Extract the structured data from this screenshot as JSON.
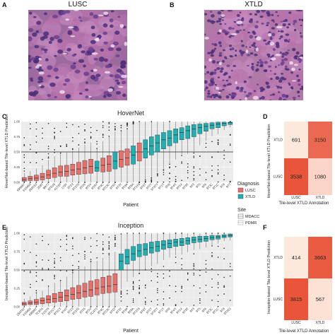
{
  "panels": {
    "A": {
      "letter": "A",
      "title": "LUSC"
    },
    "B": {
      "letter": "B",
      "title": "XTLD"
    },
    "C": {
      "letter": "C"
    },
    "D": {
      "letter": "D"
    },
    "E": {
      "letter": "E"
    },
    "F": {
      "letter": "F"
    }
  },
  "colors": {
    "lusc": "#e8706a",
    "xtld": "#1fb0b3",
    "panel_bg": "#ebebeb",
    "grid": "#ffffff",
    "histology_bg": "#a7669b",
    "heat_high": "#e8553b",
    "heat_mid": "#f2a888",
    "heat_low": "#fde8dc"
  },
  "legend": {
    "diagnosis_title": "Diagnosis",
    "diagnosis_items": [
      "LUSC",
      "XTLD"
    ],
    "site_title": "Site",
    "site_items": [
      "MDACC",
      "PDMR"
    ]
  },
  "chart_data": [
    {
      "id": "C",
      "type": "box",
      "title": "HoverNet",
      "xlabel": "Patient",
      "ylabel": "HoverNet-based Tile-level XTLD Prediction",
      "ylim": [
        0,
        1
      ],
      "yticks": [
        "0.00",
        "0.25",
        "0.50",
        "0.75",
        "1.00"
      ],
      "reference_line": 0.5,
      "categories": [
        "695887",
        "618469",
        "258153",
        "258T",
        "9R77",
        "9T5V8",
        "41T9T",
        "179T",
        "9T23",
        "9T3T0",
        "9T26",
        "9T5V",
        "9TR7",
        "9T4C",
        "9T23C",
        "9T5T",
        "9T3T",
        "9T9A",
        "9T8A",
        "9T3T8",
        "9T6T",
        "9T2T",
        "9T3TT",
        "9T1T",
        "9TR",
        "9T4X",
        "9T5X",
        "9T9T",
        "9T3",
        "9T5",
        "9T6",
        "9T3C",
        "9T1C",
        "9T8",
        "9T7"
      ],
      "diagnosis": [
        "LUSC",
        "LUSC",
        "LUSC",
        "LUSC",
        "LUSC",
        "LUSC",
        "LUSC",
        "LUSC",
        "LUSC",
        "LUSC",
        "LUSC",
        "LUSC",
        "XTLD",
        "LUSC",
        "LUSC",
        "XTLD",
        "LUSC",
        "LUSC",
        "XTLD",
        "LUSC",
        "XTLD",
        "XTLD",
        "XTLD",
        "XTLD",
        "XTLD",
        "XTLD",
        "XTLD",
        "XTLD",
        "XTLD",
        "XTLD",
        "XTLD",
        "XTLD",
        "XTLD",
        "XTLD",
        "XTLD"
      ],
      "medians": [
        0.04,
        0.06,
        0.07,
        0.09,
        0.12,
        0.15,
        0.17,
        0.18,
        0.2,
        0.22,
        0.24,
        0.26,
        0.24,
        0.28,
        0.3,
        0.35,
        0.38,
        0.4,
        0.45,
        0.5,
        0.55,
        0.6,
        0.65,
        0.7,
        0.73,
        0.78,
        0.82,
        0.85,
        0.88,
        0.9,
        0.92,
        0.94,
        0.96,
        0.97,
        0.98
      ],
      "q1": [
        0.02,
        0.03,
        0.03,
        0.04,
        0.06,
        0.08,
        0.1,
        0.1,
        0.12,
        0.13,
        0.14,
        0.15,
        0.18,
        0.17,
        0.18,
        0.22,
        0.25,
        0.28,
        0.3,
        0.35,
        0.4,
        0.45,
        0.5,
        0.55,
        0.6,
        0.65,
        0.7,
        0.72,
        0.75,
        0.8,
        0.84,
        0.88,
        0.9,
        0.93,
        0.95
      ],
      "q3": [
        0.08,
        0.1,
        0.12,
        0.15,
        0.2,
        0.24,
        0.27,
        0.28,
        0.3,
        0.33,
        0.36,
        0.38,
        0.35,
        0.4,
        0.44,
        0.5,
        0.52,
        0.55,
        0.6,
        0.65,
        0.7,
        0.75,
        0.78,
        0.82,
        0.85,
        0.88,
        0.9,
        0.93,
        0.95,
        0.96,
        0.97,
        0.98,
        0.99,
        0.99,
        0.99
      ]
    },
    {
      "id": "E",
      "type": "box",
      "title": "Inception",
      "xlabel": "Patient",
      "ylabel": "Inception-based Tile-level XTLD Prediction",
      "ylim": [
        0,
        1
      ],
      "yticks": [
        "0.00",
        "0.25",
        "0.50",
        "0.75",
        "1.00"
      ],
      "reference_line": 0.5,
      "categories": [
        "258T87",
        "618469",
        "695887",
        "TC9T6",
        "TC6T8",
        "9T2C7",
        "9T5CT",
        "9T4T",
        "9T23",
        "9T3T0",
        "9T26",
        "9T5V",
        "TC4T1",
        "9T4C",
        "9T23C",
        "9T5T",
        "9T3T",
        "9T9A",
        "9T8A",
        "9T3T8",
        "9T6T",
        "9T2T",
        "9T3TT",
        "9T1T",
        "9TR",
        "9T4X",
        "9T5X",
        "9T9T",
        "9T3",
        "9T5",
        "9T6",
        "9T3C",
        "9T1C",
        "9T8",
        "9T353"
      ],
      "diagnosis": [
        "LUSC",
        "LUSC",
        "LUSC",
        "LUSC",
        "LUSC",
        "LUSC",
        "LUSC",
        "LUSC",
        "LUSC",
        "LUSC",
        "LUSC",
        "LUSC",
        "LUSC",
        "LUSC",
        "LUSC",
        "LUSC",
        "XTLD",
        "XTLD",
        "XTLD",
        "XTLD",
        "XTLD",
        "XTLD",
        "XTLD",
        "XTLD",
        "XTLD",
        "XTLD",
        "XTLD",
        "XTLD",
        "XTLD",
        "XTLD",
        "XTLD",
        "XTLD",
        "XTLD",
        "XTLD",
        "XTLD"
      ],
      "medians": [
        0.04,
        0.05,
        0.06,
        0.08,
        0.1,
        0.11,
        0.13,
        0.15,
        0.17,
        0.19,
        0.21,
        0.23,
        0.25,
        0.27,
        0.28,
        0.3,
        0.62,
        0.68,
        0.72,
        0.76,
        0.78,
        0.8,
        0.82,
        0.84,
        0.86,
        0.88,
        0.88,
        0.9,
        0.91,
        0.92,
        0.93,
        0.94,
        0.95,
        0.96,
        0.97
      ],
      "q1": [
        0.02,
        0.03,
        0.03,
        0.04,
        0.05,
        0.06,
        0.07,
        0.08,
        0.1,
        0.11,
        0.13,
        0.14,
        0.16,
        0.18,
        0.19,
        0.2,
        0.5,
        0.58,
        0.63,
        0.68,
        0.7,
        0.73,
        0.75,
        0.78,
        0.8,
        0.82,
        0.83,
        0.85,
        0.87,
        0.88,
        0.89,
        0.91,
        0.92,
        0.94,
        0.95
      ],
      "q3": [
        0.06,
        0.08,
        0.1,
        0.12,
        0.15,
        0.18,
        0.2,
        0.23,
        0.26,
        0.29,
        0.32,
        0.35,
        0.37,
        0.4,
        0.42,
        0.45,
        0.72,
        0.78,
        0.82,
        0.85,
        0.86,
        0.88,
        0.89,
        0.9,
        0.91,
        0.92,
        0.93,
        0.94,
        0.95,
        0.96,
        0.96,
        0.97,
        0.97,
        0.98,
        0.99
      ]
    },
    {
      "id": "D",
      "type": "heatmap",
      "xlabel": "Tile-level XTLD Annotation",
      "ylabel": "HoverNet-based Tile-level XTLD Prediction",
      "x_categories": [
        "LUSC",
        "XTLD"
      ],
      "y_categories": [
        "LUSC",
        "XTLD"
      ],
      "cells": [
        {
          "x": "LUSC",
          "y": "XTLD",
          "value": 691
        },
        {
          "x": "XTLD",
          "y": "XTLD",
          "value": 3150
        },
        {
          "x": "LUSC",
          "y": "LUSC",
          "value": 3538
        },
        {
          "x": "XTLD",
          "y": "LUSC",
          "value": 1080
        }
      ]
    },
    {
      "id": "F",
      "type": "heatmap",
      "xlabel": "Tile-level XTLD Annotation",
      "ylabel": "Inception-based Tile-level XTLD Prediction",
      "x_categories": [
        "LUSC",
        "XTLD"
      ],
      "y_categories": [
        "LUSC",
        "XTLD"
      ],
      "cells": [
        {
          "x": "LUSC",
          "y": "XTLD",
          "value": 414
        },
        {
          "x": "XTLD",
          "y": "XTLD",
          "value": 3663
        },
        {
          "x": "LUSC",
          "y": "LUSC",
          "value": 3815
        },
        {
          "x": "XTLD",
          "y": "LUSC",
          "value": 567
        }
      ]
    }
  ]
}
